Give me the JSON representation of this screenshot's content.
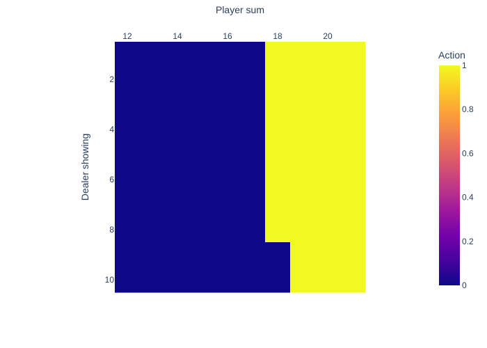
{
  "chart_data": {
    "type": "heatmap",
    "x": [
      12,
      13,
      14,
      15,
      16,
      17,
      18,
      19,
      20,
      21
    ],
    "y": [
      1,
      2,
      3,
      4,
      5,
      6,
      7,
      8,
      9,
      10
    ],
    "z": [
      [
        0,
        0,
        0,
        0,
        0,
        0,
        1,
        1,
        1,
        1
      ],
      [
        0,
        0,
        0,
        0,
        0,
        0,
        1,
        1,
        1,
        1
      ],
      [
        0,
        0,
        0,
        0,
        0,
        0,
        1,
        1,
        1,
        1
      ],
      [
        0,
        0,
        0,
        0,
        0,
        0,
        1,
        1,
        1,
        1
      ],
      [
        0,
        0,
        0,
        0,
        0,
        0,
        1,
        1,
        1,
        1
      ],
      [
        0,
        0,
        0,
        0,
        0,
        0,
        1,
        1,
        1,
        1
      ],
      [
        0,
        0,
        0,
        0,
        0,
        0,
        1,
        1,
        1,
        1
      ],
      [
        0,
        0,
        0,
        0,
        0,
        0,
        1,
        1,
        1,
        1
      ],
      [
        0,
        0,
        0,
        0,
        0,
        0,
        0,
        1,
        1,
        1
      ],
      [
        0,
        0,
        0,
        0,
        0,
        0,
        0,
        1,
        1,
        1
      ]
    ],
    "xlabel": "Player sum",
    "ylabel": "Dealer showing",
    "x_ticks": [
      "12",
      "14",
      "16",
      "18",
      "20"
    ],
    "x_tick_values": [
      12,
      14,
      16,
      18,
      20
    ],
    "y_ticks": [
      "2",
      "4",
      "6",
      "8",
      "10"
    ],
    "y_tick_values": [
      2,
      4,
      6,
      8,
      10
    ],
    "x_axis_side": "top",
    "y_axis_reversed": true,
    "colorbar": {
      "title": "Action",
      "range": [
        0,
        1
      ],
      "ticks": [
        "0",
        "0.2",
        "0.4",
        "0.6",
        "0.8",
        "1"
      ],
      "tick_values": [
        0,
        0.2,
        0.4,
        0.6,
        0.8,
        1
      ],
      "colorscale": [
        "#0d0887",
        "#46039f",
        "#7201a8",
        "#9c179e",
        "#bd3786",
        "#d8576b",
        "#ed7953",
        "#fb9f3a",
        "#fdca26",
        "#f0f921"
      ]
    },
    "grid": false
  }
}
